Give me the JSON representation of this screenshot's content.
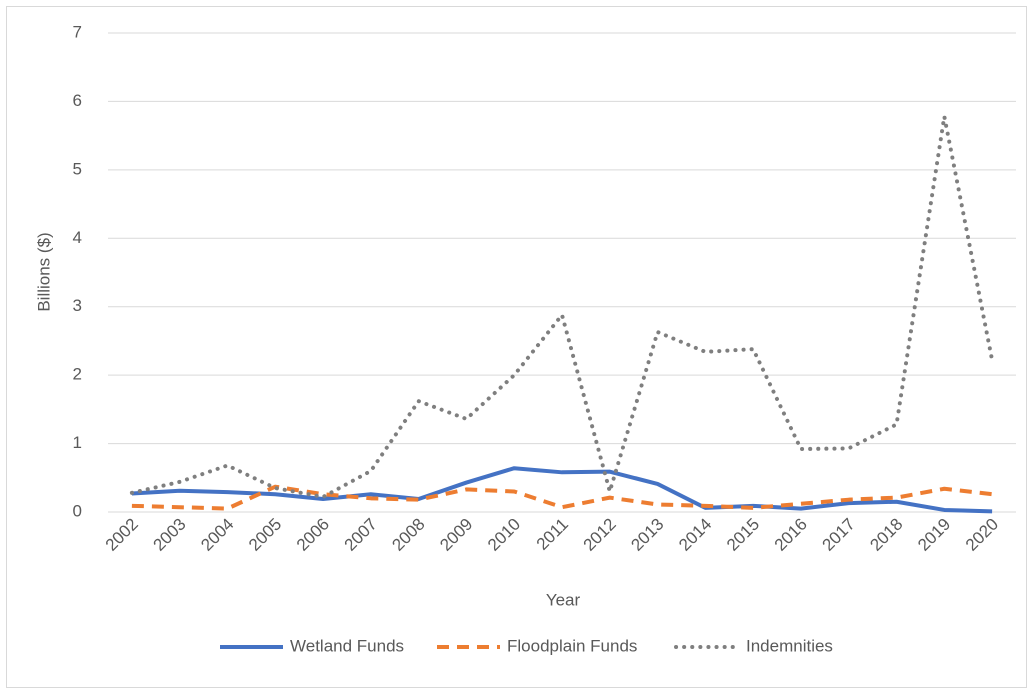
{
  "chart_data": {
    "type": "line",
    "x_label": "Year",
    "y_label": "Billions ($)",
    "categories": [
      "2002",
      "2003",
      "2004",
      "2005",
      "2006",
      "2007",
      "2008",
      "2009",
      "2010",
      "2011",
      "2012",
      "2013",
      "2014",
      "2015",
      "2016",
      "2017",
      "2018",
      "2019",
      "2020"
    ],
    "series": [
      {
        "name": "Wetland Funds",
        "color": "#4472c4",
        "dash": "solid",
        "values": [
          0.27,
          0.31,
          0.29,
          0.26,
          0.19,
          0.26,
          0.19,
          0.43,
          0.64,
          0.58,
          0.59,
          0.41,
          0.06,
          0.09,
          0.05,
          0.13,
          0.15,
          0.03,
          0.01
        ]
      },
      {
        "name": "Floodplain Funds",
        "color": "#ed7d31",
        "dash": "dashed",
        "values": [
          0.09,
          0.07,
          0.05,
          0.37,
          0.26,
          0.2,
          0.18,
          0.33,
          0.3,
          0.07,
          0.21,
          0.11,
          0.09,
          0.06,
          0.12,
          0.18,
          0.21,
          0.34,
          0.26
        ]
      },
      {
        "name": "Indemnities",
        "color": "#7f7f7f",
        "dash": "dotted",
        "values": [
          0.28,
          0.44,
          0.68,
          0.35,
          0.22,
          0.6,
          1.62,
          1.36,
          2.0,
          2.88,
          0.3,
          2.63,
          2.34,
          2.38,
          0.92,
          0.93,
          1.28,
          5.78,
          2.22
        ]
      }
    ],
    "ylim": [
      0,
      7
    ],
    "yticks": [
      0,
      1,
      2,
      3,
      4,
      5,
      6,
      7
    ],
    "grid": true,
    "legend": "bottom"
  }
}
